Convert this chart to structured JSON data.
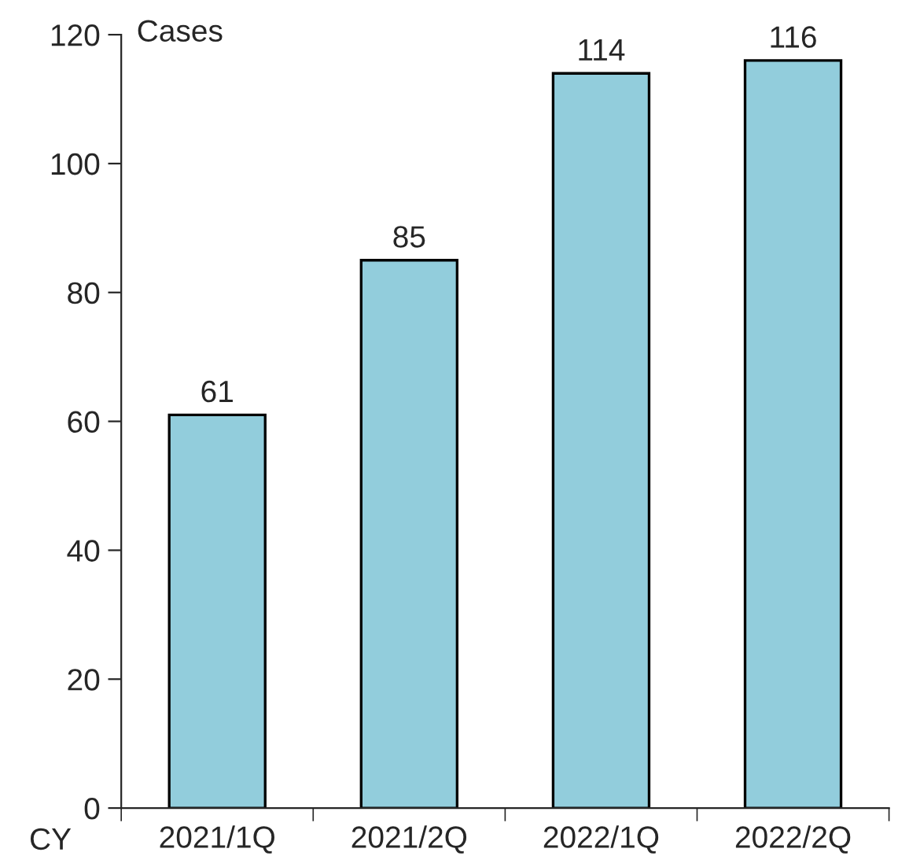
{
  "chart_data": {
    "type": "bar",
    "ylabel": "Cases",
    "xlabel": "CY",
    "categories": [
      "2021/1Q",
      "2021/2Q",
      "2022/1Q",
      "2022/2Q"
    ],
    "values": [
      61,
      85,
      114,
      116
    ],
    "color": "#92cddc",
    "ylim": [
      0,
      120
    ],
    "yticks": [
      0,
      20,
      40,
      60,
      80,
      100,
      120
    ],
    "data_labels": true,
    "grid": false,
    "legend": false
  }
}
